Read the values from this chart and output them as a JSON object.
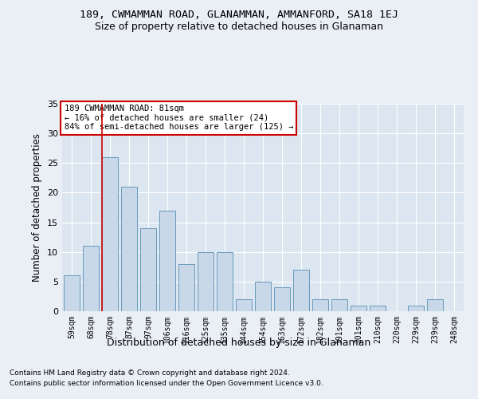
{
  "title": "189, CWMAMMAN ROAD, GLANAMMAN, AMMANFORD, SA18 1EJ",
  "subtitle": "Size of property relative to detached houses in Glanaman",
  "xlabel": "Distribution of detached houses by size in Glanaman",
  "ylabel": "Number of detached properties",
  "bar_color": "#c8d8e8",
  "bar_edge_color": "#6699bb",
  "categories": [
    "59sqm",
    "68sqm",
    "78sqm",
    "87sqm",
    "97sqm",
    "106sqm",
    "116sqm",
    "125sqm",
    "135sqm",
    "144sqm",
    "154sqm",
    "163sqm",
    "172sqm",
    "182sqm",
    "191sqm",
    "201sqm",
    "210sqm",
    "220sqm",
    "229sqm",
    "239sqm",
    "248sqm"
  ],
  "values": [
    6,
    11,
    26,
    21,
    14,
    17,
    8,
    10,
    10,
    2,
    5,
    4,
    7,
    2,
    2,
    1,
    1,
    0,
    1,
    2,
    0
  ],
  "ylim": [
    0,
    35
  ],
  "yticks": [
    0,
    5,
    10,
    15,
    20,
    25,
    30,
    35
  ],
  "property_line_x": 2,
  "annotation_title": "189 CWMAMMAN ROAD: 81sqm",
  "annotation_line1": "← 16% of detached houses are smaller (24)",
  "annotation_line2": "84% of semi-detached houses are larger (125) →",
  "annotation_box_color": "#ffffff",
  "annotation_box_edge": "#cc0000",
  "vline_color": "#cc0000",
  "footnote1": "Contains HM Land Registry data © Crown copyright and database right 2024.",
  "footnote2": "Contains public sector information licensed under the Open Government Licence v3.0.",
  "bg_color": "#eaeff6",
  "plot_bg_color": "#dce6f0"
}
